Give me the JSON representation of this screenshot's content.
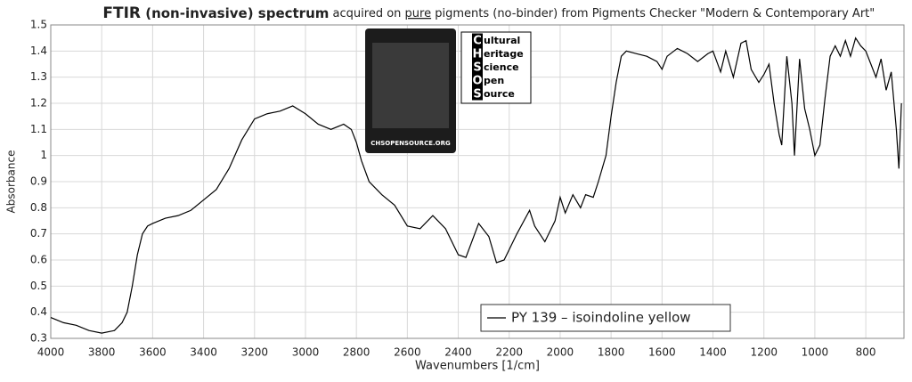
{
  "chart_data": {
    "type": "line",
    "title": [
      "FTIR",
      " (non-invasive) spectrum",
      " acquired on ",
      "pure",
      " pigments (no-binder) from Pigments Checker \"Modern & Contemporary Art\""
    ],
    "x_label": "Wavenumbers [1/cm]",
    "y_label": "Absorbance",
    "xlim": [
      4000,
      650
    ],
    "ylim": [
      0.3,
      1.5
    ],
    "xticks": [
      4000,
      3800,
      3600,
      3400,
      3200,
      3000,
      2800,
      2600,
      2400,
      2200,
      2000,
      1800,
      1600,
      1400,
      1200,
      1000,
      800
    ],
    "yticks": [
      0.3,
      0.4,
      0.5,
      0.6,
      0.7,
      0.8,
      0.9,
      1,
      1.1,
      1.2,
      1.3,
      1.4,
      1.5
    ],
    "grid": true,
    "x": [
      4000,
      3950,
      3900,
      3850,
      3800,
      3750,
      3720,
      3700,
      3680,
      3660,
      3640,
      3620,
      3600,
      3550,
      3500,
      3450,
      3400,
      3350,
      3300,
      3250,
      3200,
      3150,
      3100,
      3050,
      3000,
      2950,
      2900,
      2850,
      2820,
      2800,
      2780,
      2750,
      2700,
      2650,
      2600,
      2550,
      2500,
      2450,
      2400,
      2370,
      2320,
      2280,
      2250,
      2220,
      2170,
      2120,
      2100,
      2060,
      2020,
      2000,
      1980,
      1950,
      1920,
      1900,
      1870,
      1850,
      1820,
      1800,
      1780,
      1760,
      1740,
      1700,
      1660,
      1620,
      1600,
      1580,
      1540,
      1500,
      1460,
      1420,
      1400,
      1370,
      1350,
      1320,
      1290,
      1270,
      1250,
      1220,
      1200,
      1180,
      1160,
      1140,
      1130,
      1110,
      1090,
      1080,
      1060,
      1040,
      1020,
      1000,
      980,
      960,
      940,
      920,
      900,
      880,
      860,
      840,
      820,
      800,
      780,
      760,
      740,
      720,
      700,
      680,
      670,
      660
    ],
    "series": [
      {
        "name": "PY 139 – isoindoline yellow",
        "color": "#000000",
        "values": [
          0.38,
          0.36,
          0.35,
          0.33,
          0.32,
          0.33,
          0.36,
          0.4,
          0.5,
          0.62,
          0.7,
          0.73,
          0.74,
          0.76,
          0.77,
          0.79,
          0.83,
          0.87,
          0.95,
          1.06,
          1.14,
          1.16,
          1.17,
          1.19,
          1.16,
          1.12,
          1.1,
          1.12,
          1.1,
          1.05,
          0.98,
          0.9,
          0.85,
          0.81,
          0.73,
          0.72,
          0.77,
          0.72,
          0.62,
          0.61,
          0.74,
          0.69,
          0.59,
          0.6,
          0.7,
          0.79,
          0.73,
          0.67,
          0.75,
          0.84,
          0.78,
          0.85,
          0.8,
          0.85,
          0.84,
          0.9,
          1.0,
          1.15,
          1.28,
          1.38,
          1.4,
          1.39,
          1.38,
          1.36,
          1.33,
          1.38,
          1.41,
          1.39,
          1.36,
          1.39,
          1.4,
          1.32,
          1.4,
          1.3,
          1.43,
          1.44,
          1.33,
          1.28,
          1.31,
          1.35,
          1.2,
          1.08,
          1.04,
          1.38,
          1.2,
          1.0,
          1.37,
          1.18,
          1.1,
          1.0,
          1.04,
          1.22,
          1.38,
          1.42,
          1.38,
          1.44,
          1.38,
          1.45,
          1.42,
          1.4,
          1.35,
          1.3,
          1.37,
          1.25,
          1.32,
          1.1,
          0.95,
          1.2
        ]
      }
    ],
    "logo_lines": [
      {
        "initial": "C",
        "rest": "ultural"
      },
      {
        "initial": "H",
        "rest": "eritage"
      },
      {
        "initial": "S",
        "rest": "cience"
      },
      {
        "initial": "O",
        "rest": "pen"
      },
      {
        "initial": "S",
        "rest": "ource"
      }
    ],
    "card_caption": "CHSOPENSOURCE.ORG"
  }
}
